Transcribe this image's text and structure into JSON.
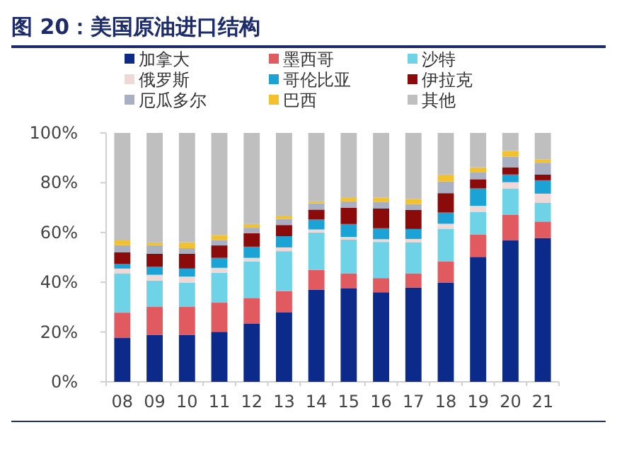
{
  "chart_data": {
    "type": "bar",
    "stacked": true,
    "title": "图 20：美国原油进口结构",
    "legend": "top",
    "categories": [
      "08",
      "09",
      "10",
      "11",
      "12",
      "13",
      "14",
      "15",
      "16",
      "17",
      "18",
      "19",
      "20",
      "21"
    ],
    "ylim": [
      0,
      100
    ],
    "yticks": [
      {
        "value": 0,
        "label": "0%"
      },
      {
        "value": 20,
        "label": "20%"
      },
      {
        "value": 40,
        "label": "40%"
      },
      {
        "value": 60,
        "label": "60%"
      },
      {
        "value": 80,
        "label": "80%"
      },
      {
        "value": 100,
        "label": "100%"
      }
    ],
    "series": [
      {
        "name": "加拿大",
        "color": "#0b2a8a",
        "values": [
          17.6,
          18.9,
          18.9,
          20.1,
          23.3,
          28,
          37,
          37.5,
          36,
          37.9,
          39.8,
          50.2,
          56.8,
          57.8
        ]
      },
      {
        "name": "墨西哥",
        "color": "#e05a5f",
        "values": [
          10.2,
          11.2,
          11.2,
          11.7,
          10.4,
          8.5,
          8,
          6.1,
          5.7,
          5.7,
          8.5,
          8.9,
          10.4,
          6.6
        ]
      },
      {
        "name": "沙特",
        "color": "#6fd3e8",
        "values": [
          15.8,
          10.6,
          9.7,
          12,
          14.6,
          16,
          15,
          13.5,
          14.5,
          12.5,
          13.2,
          9.1,
          10.5,
          7.6
        ]
      },
      {
        "name": "俄罗斯",
        "color": "#f0d8d6",
        "values": [
          1.9,
          2.3,
          2.5,
          2,
          1.5,
          1.5,
          1.2,
          1.1,
          1.1,
          1.3,
          2,
          2.5,
          2.5,
          3.6
        ]
      },
      {
        "name": "哥伦比亚",
        "color": "#1aa3d4",
        "values": [
          1.8,
          3.2,
          3.2,
          4,
          4.5,
          4.5,
          4,
          5.2,
          4.4,
          4,
          4.5,
          7,
          3.1,
          5.4
        ]
      },
      {
        "name": "伊拉克",
        "color": "#8b0a0a",
        "values": [
          4.8,
          5.3,
          6,
          5,
          5.4,
          4.5,
          4,
          6.5,
          7.9,
          7.7,
          7.8,
          3.7,
          2.9,
          2.3
        ]
      },
      {
        "name": "厄瓜多尔",
        "color": "#a9b0c2",
        "values": [
          2.8,
          3.4,
          2.2,
          2.2,
          2.2,
          2.5,
          2.5,
          2.6,
          2.6,
          2.3,
          4.7,
          2.9,
          4.3,
          4.7
        ]
      },
      {
        "name": "巴西",
        "color": "#f2c12e",
        "values": [
          1.9,
          1.1,
          2.4,
          2,
          1.5,
          1,
          0.8,
          1.4,
          1.8,
          2.1,
          2.8,
          1.9,
          2.3,
          1.4
        ]
      },
      {
        "name": "其他",
        "color": "#bfbfbf",
        "values": [
          43.2,
          44,
          43.9,
          41,
          36.6,
          33.5,
          27.5,
          26.1,
          26,
          26.5,
          16.7,
          13.8,
          7.2,
          10.6
        ]
      }
    ]
  }
}
